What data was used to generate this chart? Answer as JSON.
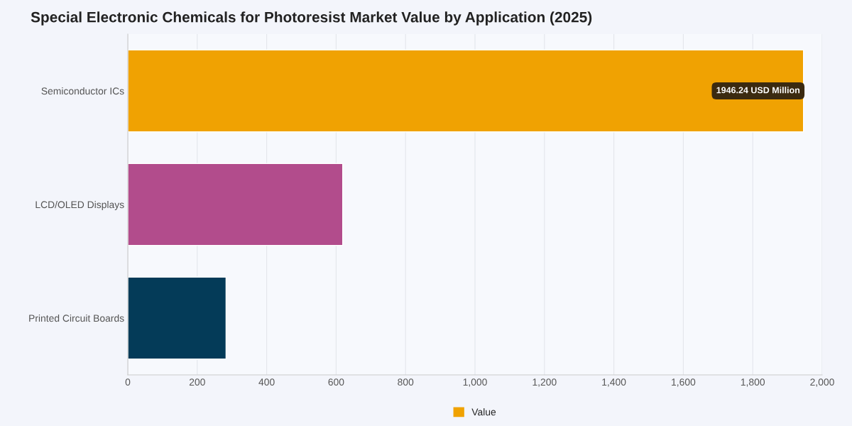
{
  "chart_data": {
    "type": "bar",
    "orientation": "horizontal",
    "title": "Special Electronic Chemicals for Photoresist Market Value by Application (2025)",
    "categories": [
      "Semiconductor ICs",
      "LCD/OLED Displays",
      "Printed Circuit Boards"
    ],
    "series": [
      {
        "name": "Value",
        "colors": [
          "#f0a202",
          "#b24c8c",
          "#043b58"
        ],
        "values": [
          1946.24,
          619,
          283
        ],
        "value_labels": [
          "1946.24 USD Million",
          null,
          null
        ]
      }
    ],
    "xlim": [
      0,
      2000
    ],
    "xticks": [
      0,
      200,
      400,
      600,
      800,
      {
        "value": 1000,
        "label": "1,000"
      },
      {
        "value": 1200,
        "label": "1,200"
      },
      {
        "value": 1400,
        "label": "1,400"
      },
      {
        "value": 1600,
        "label": "1,600"
      },
      {
        "value": 1800,
        "label": "1,800"
      },
      {
        "value": 2000,
        "label": "2,000"
      }
    ],
    "grid": "x",
    "legend": "bottom"
  }
}
